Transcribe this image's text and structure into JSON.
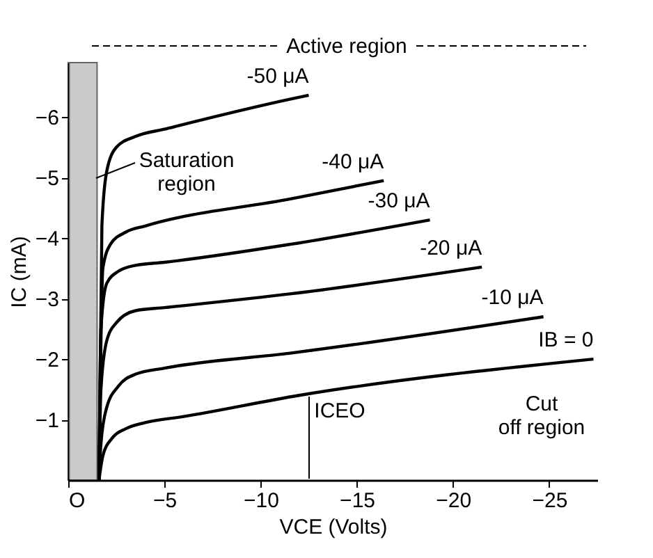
{
  "chart_data": {
    "type": "line",
    "xlabel": "VCE (Volts)",
    "ylabel": "IC (mA)",
    "xlim": [
      0,
      -27.5
    ],
    "ylim": [
      0,
      -6.9
    ],
    "xticks": [
      {
        "value": 0,
        "label": "O"
      },
      -5,
      -10,
      -15,
      -20,
      -25
    ],
    "yticks": [
      -1,
      -2,
      -3,
      -4,
      -5,
      -6
    ],
    "grid": false,
    "legend": false,
    "marker": "none",
    "line_style": "solid",
    "series": [
      {
        "name": "IB = 0",
        "color": "#000000",
        "x": [
          -1.6,
          -1.8,
          -2.3,
          -3,
          -4,
          -6,
          -12,
          -27.3
        ],
        "values": [
          0,
          -0.4,
          -0.7,
          -0.85,
          -0.95,
          -1.05,
          -1.4,
          -2.0
        ]
      },
      {
        "name": "-10 μA",
        "color": "#000000",
        "x": [
          -1.6,
          -1.7,
          -2,
          -2.6,
          -3.5,
          -5,
          -11.6,
          -24.7
        ],
        "values": [
          0,
          -0.6,
          -1.2,
          -1.55,
          -1.75,
          -1.85,
          -2.1,
          -2.7
        ]
      },
      {
        "name": "-20 μA",
        "color": "#000000",
        "x": [
          -1.6,
          -1.7,
          -2,
          -2.5,
          -3.5,
          -5,
          -11.6,
          -21.5
        ],
        "values": [
          0,
          -1.5,
          -2.3,
          -2.6,
          -2.8,
          -2.85,
          -3.08,
          -3.52
        ]
      },
      {
        "name": "-30 μA",
        "color": "#000000",
        "x": [
          -1.6,
          -1.7,
          -2,
          -2.6,
          -3.5,
          -5,
          -11.6,
          -18.8
        ],
        "values": [
          0,
          -2.5,
          -3.25,
          -3.45,
          -3.55,
          -3.6,
          -3.9,
          -4.3
        ]
      },
      {
        "name": "-40 μA",
        "color": "#000000",
        "x": [
          -1.6,
          -1.8,
          -2.2,
          -3,
          -4,
          -11.6,
          -16.4
        ],
        "values": [
          0,
          -3.5,
          -3.9,
          -4.1,
          -4.2,
          -4.65,
          -4.95
        ]
      },
      {
        "name": "-50 μA",
        "color": "#000000",
        "x": [
          -1.6,
          -1.75,
          -2,
          -2.5,
          -3.5,
          -5,
          -11.6,
          -12.5
        ],
        "values": [
          0,
          -4.2,
          -5.1,
          -5.5,
          -5.68,
          -5.8,
          -6.3,
          -6.36
        ]
      }
    ],
    "bands": [
      {
        "axis": "x",
        "from": 0,
        "to": -1.5,
        "label": "Saturation\nregion",
        "color": "#aaaaaa"
      }
    ],
    "annotations": [
      "Active region",
      "ICEO",
      "Cut\noff region"
    ]
  }
}
